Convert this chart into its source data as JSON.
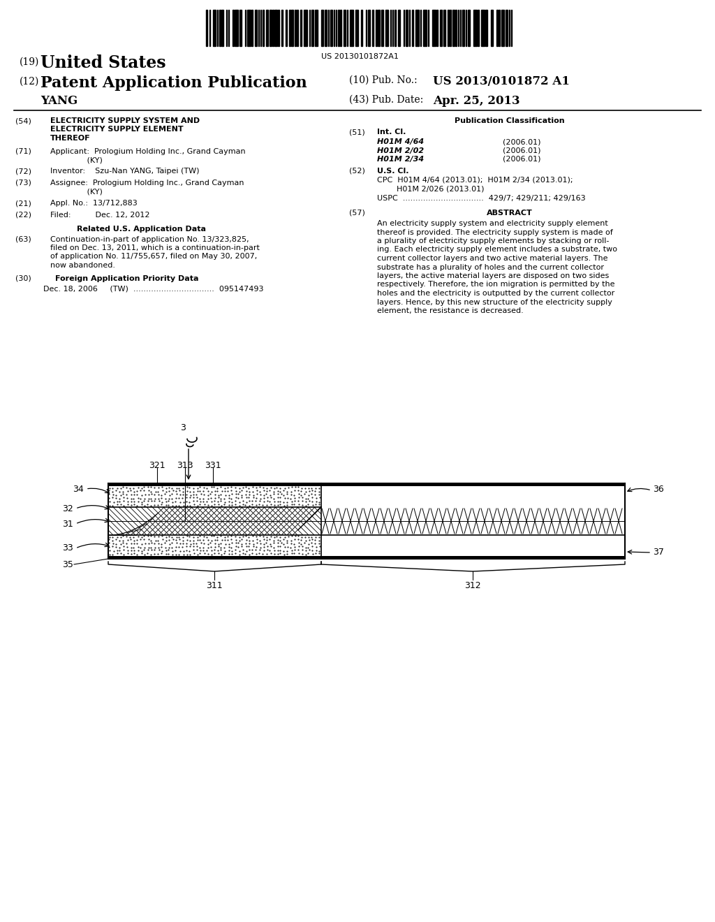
{
  "bg_color": "#ffffff",
  "barcode_text": "US 20130101872A1",
  "title_19": "(19)  United States",
  "title_12_left": "(12)",
  "title_12_right": "Patent Application Publication",
  "pub_no_label": "(10) Pub. No.:",
  "pub_no_value": "US 2013/0101872 A1",
  "pub_date_label": "(43) Pub. Date:",
  "pub_date_value": "Apr. 25, 2013",
  "author": "YANG",
  "field54_label": "(54)",
  "field54_lines": [
    "ELECTRICITY SUPPLY SYSTEM AND",
    "ELECTRICITY SUPPLY ELEMENT",
    "THEREOF"
  ],
  "field71_label": "(71)",
  "field71_lines": [
    "Applicant:  Prologium Holding Inc., Grand Cayman",
    "               (KY)"
  ],
  "field72_label": "(72)",
  "field72_text": "Inventor:    Szu-Nan YANG, Taipei (TW)",
  "field73_label": "(73)",
  "field73_lines": [
    "Assignee:  Prologium Holding Inc., Grand Cayman",
    "               (KY)"
  ],
  "field21_label": "(21)",
  "field21_text": "Appl. No.:  13/712,883",
  "field22_label": "(22)",
  "field22_text": "Filed:          Dec. 12, 2012",
  "related_data_header": "Related U.S. Application Data",
  "field63_label": "(63)",
  "field63_lines": [
    "Continuation-in-part of application No. 13/323,825,",
    "filed on Dec. 13, 2011, which is a continuation-in-part",
    "of application No. 11/755,657, filed on May 30, 2007,",
    "now abandoned."
  ],
  "field30_label": "(30)",
  "field30_header": "Foreign Application Priority Data",
  "field30_text": "Dec. 18, 2006     (TW)  ................................  095147493",
  "pub_class_header": "Publication Classification",
  "field51_label": "(51)",
  "int_cl_header": "Int. Cl.",
  "int_cl_entries": [
    [
      "H01M 4/64",
      "(2006.01)"
    ],
    [
      "H01M 2/02",
      "(2006.01)"
    ],
    [
      "H01M 2/34",
      "(2006.01)"
    ]
  ],
  "field52_label": "(52)",
  "us_cl_header": "U.S. Cl.",
  "cpc_line1": "CPC  H01M 4/64 (2013.01);  H01M 2/34 (2013.01);",
  "cpc_line2": "        H01M 2/026 (2013.01)",
  "uspc_text": "USPC  ................................  429/7; 429/211; 429/163",
  "field57_label": "(57)",
  "abstract_header": "ABSTRACT",
  "abstract_lines": [
    "An electricity supply system and electricity supply element",
    "thereof is provided. The electricity supply system is made of",
    "a plurality of electricity supply elements by stacking or roll-",
    "ing. Each electricity supply element includes a substrate, two",
    "current collector layers and two active material layers. The",
    "substrate has a plurality of holes and the current collector",
    "layers, the active material layers are disposed on two sides",
    "respectively. Therefore, the ion migration is permitted by the",
    "holes and the electricity is outputted by the current collector",
    "layers. Hence, by this new structure of the electricity supply",
    "element, the resistance is decreased."
  ]
}
